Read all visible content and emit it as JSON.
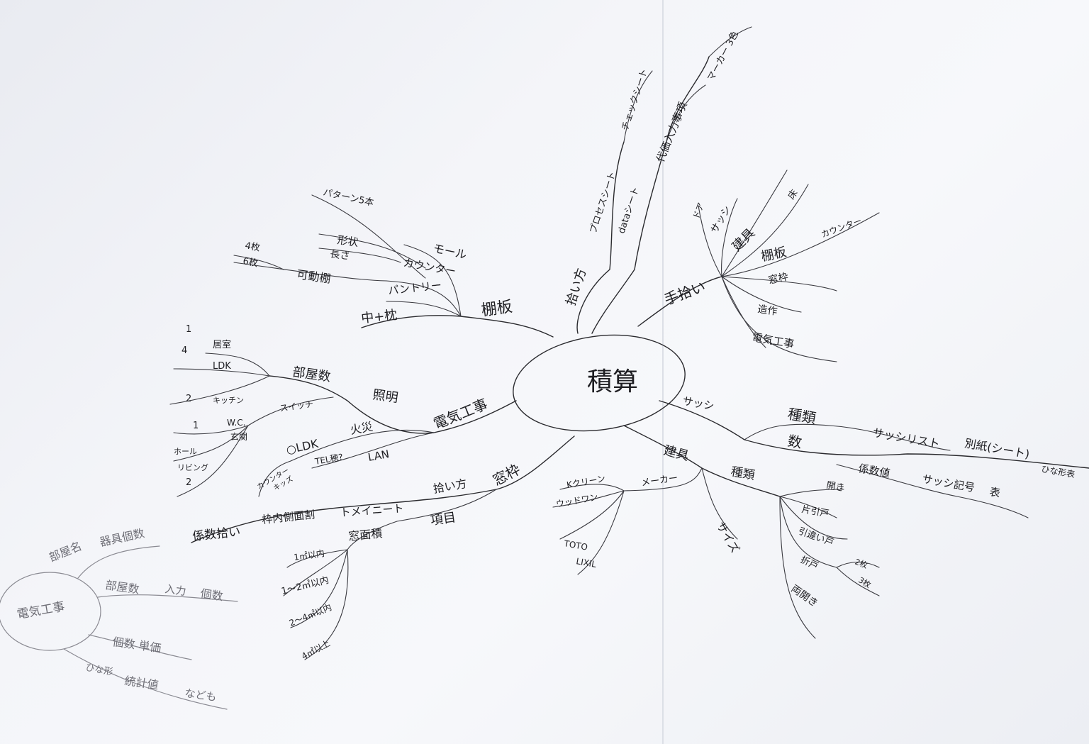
{
  "center": "積算",
  "branches": {
    "tana": {
      "label": "棚板",
      "items": [
        "モール",
        "カウンター",
        "パントリー",
        "中+枕",
        "可動棚",
        "形状",
        "長さ",
        "パターン5本",
        "4枚",
        "6枚"
      ]
    },
    "denki": {
      "label": "電気工事",
      "items": [
        "照明",
        "部屋数",
        "居室",
        "LDK",
        "キッチン",
        "W.C.",
        "玄関",
        "ホール",
        "スイッチ",
        "リビング",
        "火災",
        "○LDK",
        "TEL穂?",
        "LAN",
        "カウンター",
        "キッズ"
      ],
      "numbers": [
        "1",
        "4",
        "2",
        "1",
        "2"
      ]
    },
    "madowaku": {
      "label": "窓枠",
      "items": [
        "拾い方",
        "項目",
        "係数拾い",
        "枠内側面割",
        "トメイニート",
        "窓面積",
        "1㎡以内",
        "1〜2㎡以内",
        "2〜4㎡以内",
        "4㎡以上"
      ]
    },
    "hiroi": {
      "label": "拾い方",
      "items": [
        "プロセスシート",
        "チェックシート",
        "dataシート",
        "代価入力事項",
        "マーカー 3色"
      ]
    },
    "tenaki": {
      "label": "手拾い",
      "items": [
        "ドア",
        "サッシ",
        "建具",
        "棚板",
        "窓枠",
        "床",
        "造作",
        "電気工事",
        "カウンター"
      ]
    },
    "sash": {
      "label": "サッシ",
      "items": [
        "種類",
        "数",
        "サッシリスト",
        "別紙(シート)",
        "係数値",
        "サッシ記号",
        "表",
        "ひな形表"
      ]
    },
    "tategu": {
      "label": "建具",
      "items": [
        "メーカー",
        "種類",
        "サイズ",
        "Kクリーン",
        "ウッドワン",
        "TOTO",
        "LIXIL",
        "開き",
        "片引戸",
        "引違い戸",
        "折戸",
        "2枚",
        "3枚",
        "両開き"
      ]
    }
  },
  "pencil_note": {
    "center": "電気工事",
    "items": [
      "部屋名",
      "器具個数",
      "部屋数",
      "入力",
      "個数",
      "個数 単価",
      "ひな形",
      "統計値",
      "なども"
    ]
  }
}
